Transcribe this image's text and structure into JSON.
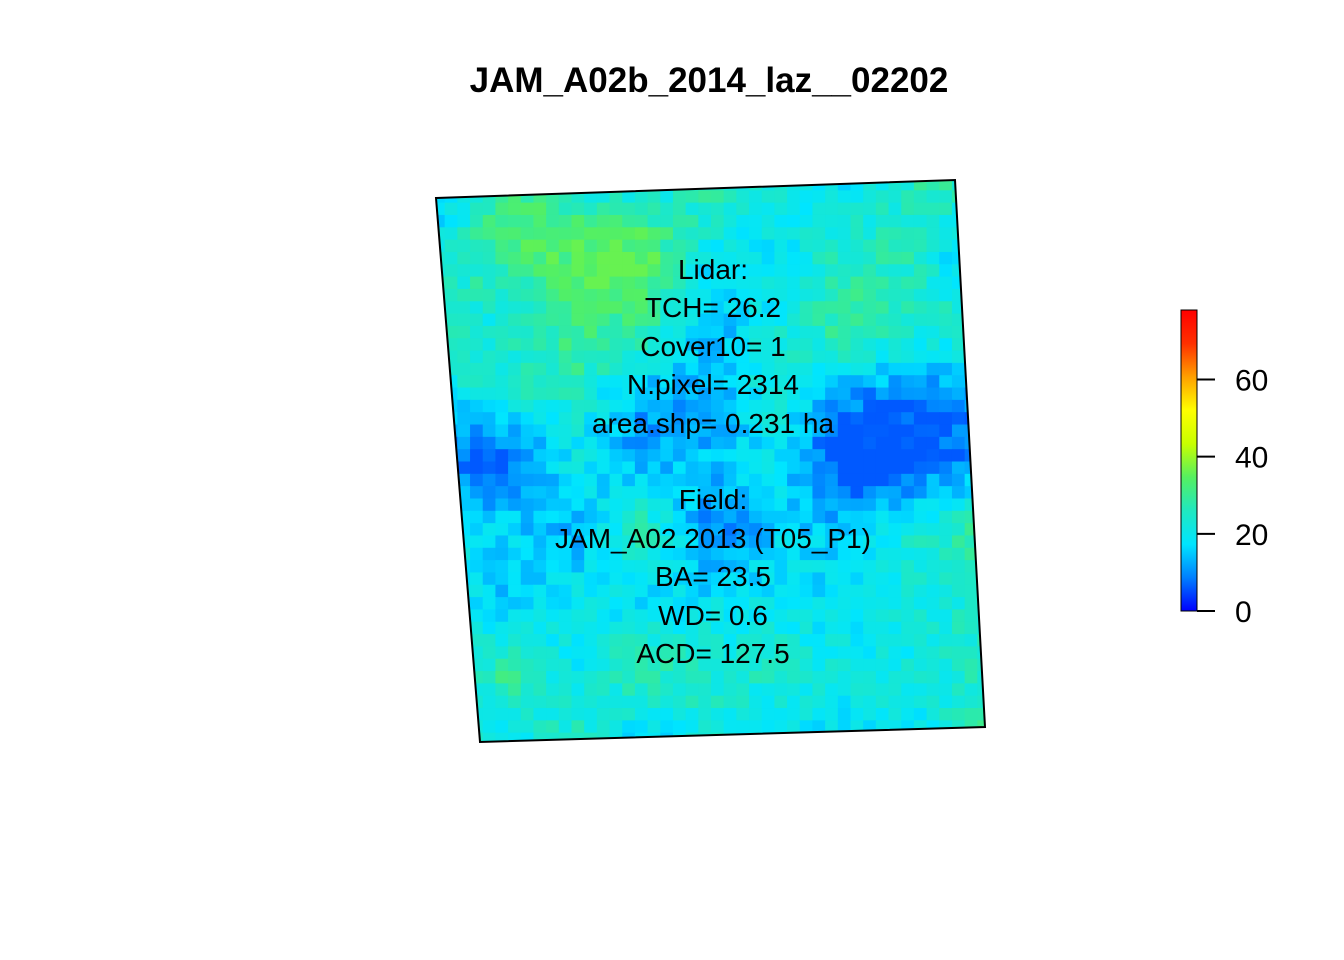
{
  "chart_data": {
    "type": "heatmap",
    "title": "JAM_A02b_2014_laz__02202",
    "annotation": {
      "lidar_lines": [
        "Lidar:",
        "TCH= 26.2",
        "Cover10= 1",
        "N.pixel= 2314",
        "area.shp= 0.231 ha"
      ],
      "field_lines": [
        "Field:",
        "JAM_A02 2013 (T05_P1)",
        "BA= 23.5",
        "WD= 0.6",
        "ACD= 127.5"
      ]
    },
    "colorbar": {
      "range": [
        0,
        78
      ],
      "ticks": [
        0,
        20,
        40,
        60
      ],
      "tick_labels": [
        "0",
        "20",
        "40",
        "60"
      ],
      "colors": [
        "#0000ff",
        "#0080ff",
        "#00e5ff",
        "#20e8c0",
        "#55f060",
        "#c8ff00",
        "#ffff00",
        "#ffa000",
        "#ff3000",
        "#ff0000"
      ]
    },
    "raster": {
      "rows": 46,
      "cols": 44,
      "value_range": [
        6,
        36
      ],
      "notes": "canopy height model (m), rotated plot outline"
    }
  }
}
